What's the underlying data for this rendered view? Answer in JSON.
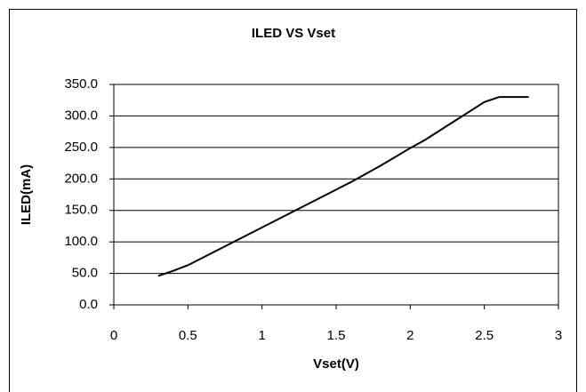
{
  "chart_data": {
    "type": "line",
    "title": "ILED VS Vset",
    "x_label": "Vset(V)",
    "y_label": "ILED(mA)",
    "x": [
      0.3,
      0.4,
      0.5,
      0.6,
      0.7,
      0.8,
      0.9,
      1.0,
      1.1,
      1.2,
      1.3,
      1.4,
      1.5,
      1.6,
      1.7,
      1.8,
      1.9,
      2.0,
      2.1,
      2.2,
      2.3,
      2.4,
      2.5,
      2.6,
      2.7,
      2.8
    ],
    "series": [
      {
        "name": "ILED",
        "color": "#000000",
        "values": [
          46,
          54,
          63,
          75,
          87,
          99,
          111,
          123,
          135,
          147,
          159,
          171,
          183,
          195,
          208,
          221,
          235,
          249,
          262,
          277,
          292,
          307,
          322,
          330,
          330,
          330
        ]
      }
    ],
    "xlim": [
      0,
      3
    ],
    "xticks": [
      0,
      0.5,
      1,
      1.5,
      2,
      2.5,
      3
    ],
    "ylim": [
      0,
      350
    ],
    "yticks": [
      {
        "value": 0,
        "label": "0.0"
      },
      {
        "value": 50,
        "label": "50.0"
      },
      {
        "value": 100,
        "label": "100.0"
      },
      {
        "value": 150,
        "label": "150.0"
      },
      {
        "value": 200,
        "label": "200.0"
      },
      {
        "value": 250,
        "label": "250.0"
      },
      {
        "value": 300,
        "label": "300.0"
      },
      {
        "value": 350,
        "label": "350.0"
      }
    ],
    "grid": true
  }
}
